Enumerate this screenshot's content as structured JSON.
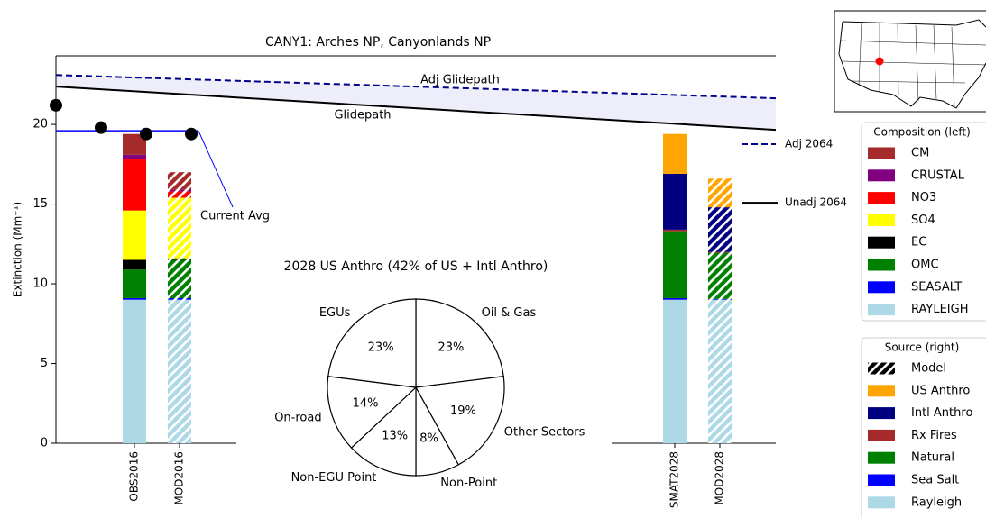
{
  "chart_data": [
    {
      "type": "bar",
      "stacked": true,
      "title": "CANY1: Arches NP, Canyonlands NP",
      "ylabel": "Extinction (Mm⁻¹)",
      "categories": [
        "OBS2016",
        "MOD2016",
        "SMAT2028",
        "MOD2028"
      ],
      "hatched": [
        false,
        true,
        false,
        true
      ],
      "ylim": [
        0,
        24.3
      ],
      "yticks": [
        0,
        5,
        10,
        15,
        20
      ],
      "composition": {
        "title": "Composition (left)",
        "series": [
          {
            "name": "RAYLEIGH",
            "color": "#add8e6",
            "values": [
              9.0,
              9.0,
              null,
              null
            ]
          },
          {
            "name": "SEASALT",
            "color": "#0000ff",
            "values": [
              0.1,
              0.1,
              null,
              null
            ]
          },
          {
            "name": "OMC",
            "color": "#008000",
            "values": [
              1.8,
              2.4,
              null,
              null
            ]
          },
          {
            "name": "EC",
            "color": "#000000",
            "values": [
              0.6,
              0.1,
              null,
              null
            ]
          },
          {
            "name": "SO4",
            "color": "#ffff00",
            "values": [
              3.1,
              3.8,
              null,
              null
            ]
          },
          {
            "name": "NO3",
            "color": "#ff0000",
            "values": [
              3.2,
              0.4,
              null,
              null
            ]
          },
          {
            "name": "CRUSTAL",
            "color": "#800080",
            "values": [
              0.3,
              0.1,
              null,
              null
            ]
          },
          {
            "name": "CM",
            "color": "#a52a2a",
            "values": [
              1.3,
              1.1,
              null,
              null
            ]
          }
        ]
      },
      "source": {
        "title": "Source (right)",
        "model_label": "Model",
        "series": [
          {
            "name": "Rayleigh",
            "color": "#add8e6",
            "values": [
              null,
              null,
              9.0,
              9.0
            ]
          },
          {
            "name": "Sea Salt",
            "color": "#0000ff",
            "values": [
              null,
              null,
              0.1,
              0.05
            ]
          },
          {
            "name": "Natural",
            "color": "#008000",
            "values": [
              null,
              null,
              4.2,
              2.9
            ]
          },
          {
            "name": "Rx Fires",
            "color": "#a52a2a",
            "values": [
              null,
              null,
              0.1,
              0.05
            ]
          },
          {
            "name": "Intl Anthro",
            "color": "#000080",
            "values": [
              null,
              null,
              3.5,
              2.8
            ]
          },
          {
            "name": "US Anthro",
            "color": "#ffa500",
            "values": [
              null,
              null,
              2.5,
              1.8
            ]
          }
        ]
      },
      "observed_points": {
        "color": "#000000",
        "values": [
          21.2,
          19.8,
          19.4,
          19.4
        ]
      },
      "current_avg": {
        "label": "Current Avg",
        "color": "#0000ff",
        "value": 19.6
      },
      "glidepath": {
        "label": "Glidepath",
        "color": "#000000",
        "values": [
          22.37,
          19.66
        ]
      },
      "adj_glidepath": {
        "label": "Adj Glidepath",
        "color": "#00008b",
        "values": [
          23.1,
          21.64
        ]
      },
      "adj_2064": {
        "label": "Adj 2064",
        "color": "#00008b",
        "value": 18.76
      },
      "unadj_2064": {
        "label": "Unadj 2064",
        "color": "#000000",
        "value": 15.08
      }
    },
    {
      "type": "pie",
      "title": "2028 US Anthro (42% of US + Intl Anthro)",
      "categories": [
        "Oil & Gas",
        "Other Sectors",
        "Non-Point",
        "Non-EGU Point",
        "On-road",
        "EGUs"
      ],
      "values": [
        23,
        19,
        8,
        13,
        14,
        23
      ],
      "value_labels": [
        "23%",
        "19%",
        "8%",
        "13%",
        "14%",
        "23%"
      ]
    }
  ]
}
